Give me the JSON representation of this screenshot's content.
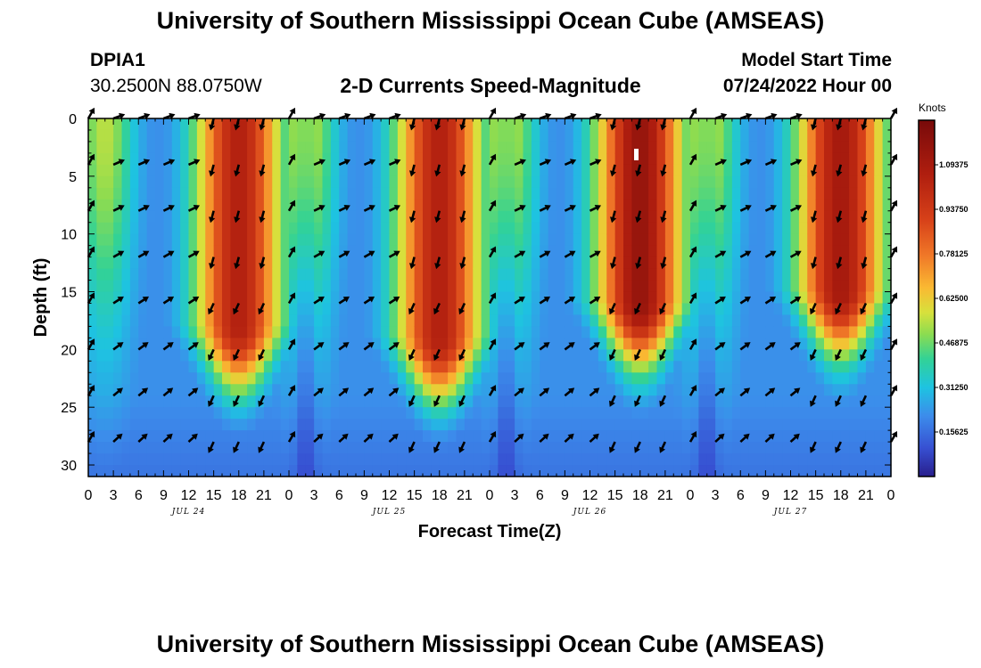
{
  "header": {
    "title": "University of Southern Mississippi Ocean Cube (AMSEAS)",
    "station": "DPIA1",
    "coords": "30.2500N  88.0750W",
    "subtitle": "2-D Currents Speed-Magnitude",
    "model_start_label": "Model Start Time",
    "model_start_value": "07/24/2022 Hour 00"
  },
  "footer": {
    "title": "University of Southern Mississippi Ocean Cube (AMSEAS)"
  },
  "chart_data": {
    "type": "heatmap",
    "title": "2-D Currents Speed-Magnitude",
    "xlabel": "Forecast Time(Z)",
    "ylabel": "Depth (ft)",
    "x_range_hours": [
      0,
      96
    ],
    "ylim": [
      0,
      31
    ],
    "x_tick_labels": [
      "0",
      "3",
      "6",
      "9",
      "12",
      "15",
      "18",
      "21",
      "0",
      "3",
      "6",
      "9",
      "12",
      "15",
      "18",
      "21",
      "0",
      "3",
      "6",
      "9",
      "12",
      "15",
      "18",
      "21",
      "0",
      "3",
      "6",
      "9",
      "12",
      "15",
      "18",
      "21",
      "0"
    ],
    "y_ticks": [
      0,
      5,
      10,
      15,
      20,
      25,
      30
    ],
    "day_labels": [
      {
        "label": "JUL 24",
        "hour": 12
      },
      {
        "label": "JUL 25",
        "hour": 36
      },
      {
        "label": "JUL 26",
        "hour": 60
      },
      {
        "label": "JUL 27",
        "hour": 84
      }
    ],
    "colorbar": {
      "unit": "Knots",
      "min": 0,
      "max": 1.25,
      "labels": [
        "0.15625",
        "0.31250",
        "0.46875",
        "0.62500",
        "0.78125",
        "0.93750",
        "1.09375"
      ]
    },
    "speed_peaks": [
      {
        "hour": 18,
        "max_knots": 1.05,
        "max_depth_ft": 18
      },
      {
        "hour": 42,
        "max_knots": 1.05,
        "max_depth_ft": 19
      },
      {
        "hour": 66,
        "max_knots": 1.15,
        "max_depth_ft": 16
      },
      {
        "hour": 90,
        "max_knots": 1.1,
        "max_depth_ft": 15
      }
    ],
    "speed_secondary": [
      {
        "hour": 2,
        "max_knots": 0.55
      },
      {
        "hour": 26,
        "max_knots": 0.6
      },
      {
        "hour": 50,
        "max_knots": 0.6
      },
      {
        "hour": 74,
        "max_knots": 0.6
      }
    ],
    "vector_depths_ft": [
      0,
      4,
      8,
      12,
      16,
      20,
      24,
      28
    ],
    "vector_hours": [
      0,
      3,
      6,
      9,
      12,
      15,
      18,
      21,
      24,
      27,
      30,
      33,
      36,
      39,
      42,
      45,
      48,
      51,
      54,
      57,
      60,
      63,
      66,
      69,
      72,
      75,
      78,
      81,
      84,
      87,
      90,
      93,
      96
    ]
  }
}
